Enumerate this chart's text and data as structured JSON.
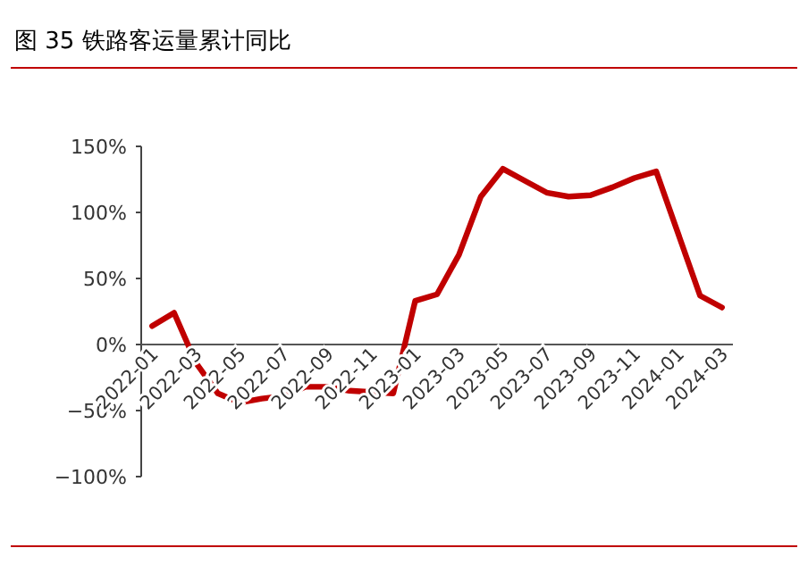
{
  "chart_data": {
    "type": "line",
    "title": "图 35   铁路客运量累计同比",
    "categories": [
      "2022-01",
      null,
      "2022-03",
      null,
      "2022-05",
      null,
      "2022-07",
      null,
      "2022-09",
      null,
      "2022-11",
      null,
      "2023-01",
      null,
      "2023-03",
      null,
      "2023-05",
      null,
      "2023-07",
      null,
      "2023-09",
      null,
      "2023-11",
      null,
      "2024-01",
      null,
      "2024-03"
    ],
    "series": [
      {
        "color": "#c00000",
        "values": [
          14,
          24,
          -14,
          -37,
          -44,
          -41,
          -39,
          -32,
          -32,
          -35,
          -36,
          -37,
          33,
          38,
          68,
          112,
          133,
          124,
          115,
          112,
          113,
          119,
          126,
          131,
          84,
          37,
          28
        ]
      }
    ],
    "ylim": [
      -100,
      150
    ],
    "yticks": [
      {
        "value": -100,
        "label": "−100%"
      },
      {
        "value": -50,
        "label": "−50%"
      },
      {
        "value": 0,
        "label": "0%"
      },
      {
        "value": 50,
        "label": "50%"
      },
      {
        "value": 100,
        "label": "100%"
      },
      {
        "value": 150,
        "label": "150%"
      }
    ],
    "line_style": "solid"
  }
}
